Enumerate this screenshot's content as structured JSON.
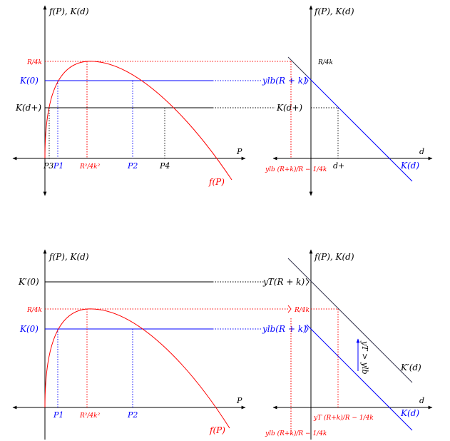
{
  "colors": {
    "black": "#000000",
    "red": "#ff0000",
    "blue": "#0000ff",
    "dark": "#33334d"
  },
  "top_left": {
    "y_axis_label": "f(P), K(d)",
    "x_axis_label": "P",
    "curve_label": "f(P)",
    "r_over_4k": "R/4k",
    "k0_label": "K(0)",
    "kdplus_label": "K(d+)",
    "ticks": {
      "p3": "P3",
      "p1": "P1",
      "peak": "R²/4k²",
      "p2": "P2",
      "p4": "P4"
    }
  },
  "top_right": {
    "y_axis_label": "f(P), K(d)",
    "x_axis_label": "d",
    "line_label": "K(d)",
    "r_over_4k": "R/4k",
    "ylb_label": "ylb(R + k)",
    "kdplus_label": "K(d+)",
    "tick_left": "ylb (R+k)/R − 1/4k",
    "tick_dplus": "d+"
  },
  "bottom_left": {
    "y_axis_label": "f(P), K(d)",
    "x_axis_label": "P",
    "curve_label": "f(P)",
    "kprime0_label": "K′(0)",
    "r_over_4k": "R/4k",
    "k0_label": "K(0)",
    "ticks": {
      "p1": "P1",
      "peak": "R²/4k²",
      "p2": "P2"
    }
  },
  "bottom_right": {
    "y_axis_label": "f(P), K(d)",
    "x_axis_label": "d",
    "yt_label": "yT(R + k)",
    "r_over_4k": "R/4k",
    "ylb_label": "ylb(R + k)",
    "kprime_label": "K′(d)",
    "k_label": "K(d)",
    "arrow_label": "yT > ylb",
    "tick_yt": "yT (R+k)/R − 1/4k",
    "tick_ylb": "ylb (R+k)/R − 1/4k"
  }
}
